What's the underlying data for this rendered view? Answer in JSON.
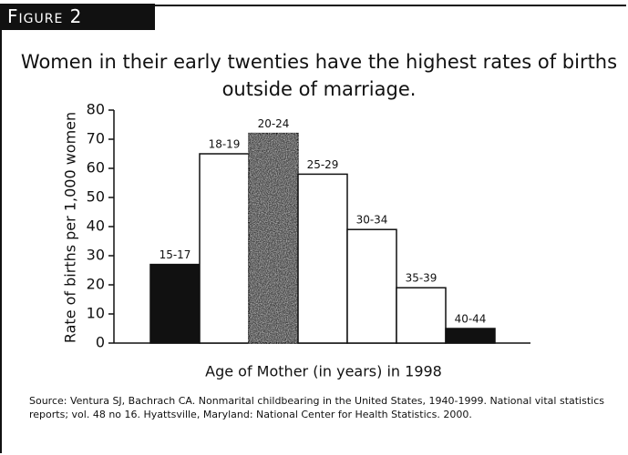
{
  "figure_label": "Figure 2",
  "chart_data": {
    "type": "bar",
    "title": "Women in their early twenties have the highest rates of births outside of marriage.",
    "x_label": "Age of Mother (in years) in 1998",
    "y_label": "Rate of births per 1,000 women",
    "categories": [
      "15-17",
      "18-19",
      "20-24",
      "25-29",
      "30-34",
      "35-39",
      "40-44"
    ],
    "values": [
      27,
      65,
      72,
      58,
      39,
      19,
      5
    ],
    "colors": [
      "#111111",
      "#ffffff",
      "#4a4a4a",
      "#ffffff",
      "#ffffff",
      "#ffffff",
      "#111111"
    ],
    "ylim": [
      0,
      80
    ],
    "yticks": [
      0,
      10,
      20,
      30,
      40,
      50,
      60,
      70,
      80
    ]
  },
  "source": "Source: Ventura SJ, Bachrach CA.  Nonmarital childbearing in the United States, 1940-1999. National vital statistics  reports; vol. 48 no 16.  Hyattsville, Maryland: National Center for Health Statistics. 2000."
}
